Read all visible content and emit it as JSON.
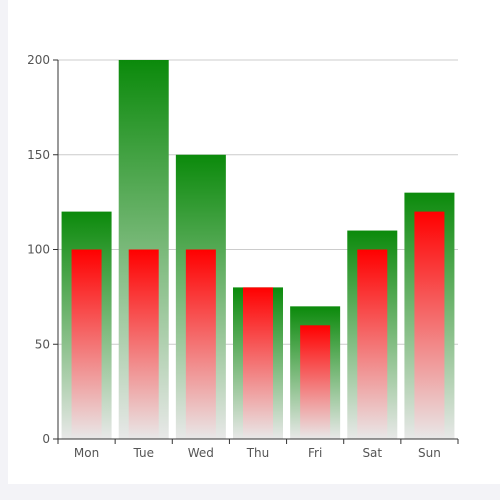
{
  "chart_data": {
    "type": "bar",
    "categories": [
      "Mon",
      "Tue",
      "Wed",
      "Thu",
      "Fri",
      "Sat",
      "Sun"
    ],
    "series": [
      {
        "values": [
          120,
          200,
          150,
          80,
          70,
          110,
          130
        ],
        "color_top": "#0b8a0b",
        "color_bottom": "#e8e8e8"
      },
      {
        "values": [
          100,
          100,
          100,
          80,
          60,
          100,
          120
        ],
        "color_top": "#ff0000",
        "color_bottom": "#e8e8e8"
      }
    ],
    "ylim": [
      0,
      200
    ],
    "yticks": [
      0,
      50,
      100,
      150,
      200
    ],
    "grid": true,
    "title": "",
    "xlabel": "",
    "ylabel": ""
  },
  "colors": {
    "axis": "#333333",
    "grid": "#cccccc",
    "label": "#555555",
    "gutter": "#f3f3f7"
  }
}
